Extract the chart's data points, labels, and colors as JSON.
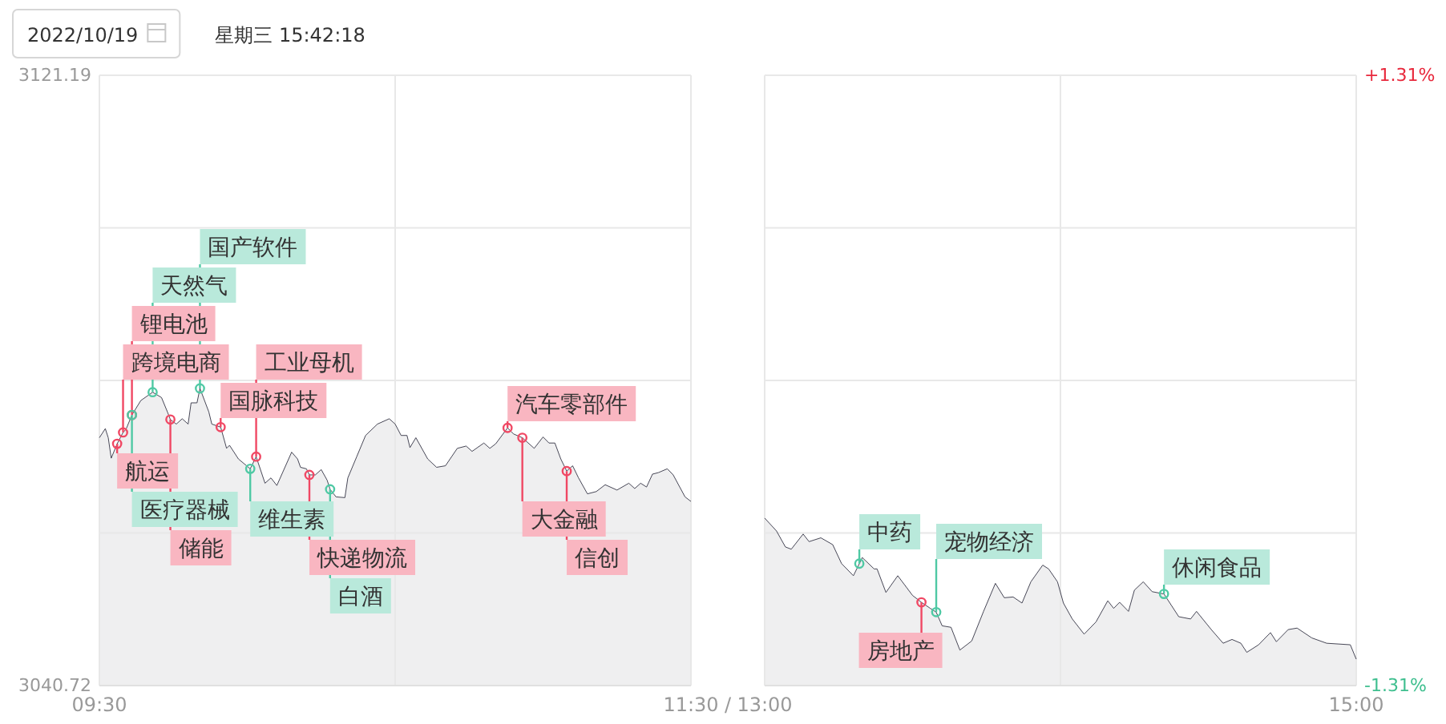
{
  "chart_data": [
    {
      "type": "area",
      "title": "2022/10/19",
      "subtitle": "星期三 15:42:18",
      "color": "#333344",
      "x": [
        9.5,
        9.52,
        9.53,
        9.54,
        9.56,
        9.58,
        9.59,
        9.61,
        9.64,
        9.68,
        9.71,
        9.73,
        9.74,
        9.76,
        9.78,
        9.8,
        9.81,
        9.83,
        9.84,
        9.87,
        9.88,
        9.91,
        9.93,
        9.94,
        9.97,
        10.01,
        10.03,
        10.06,
        10.08,
        10.1,
        10.15,
        10.17,
        10.18,
        10.2,
        10.21,
        10.23,
        10.25,
        10.27,
        10.28,
        10.3,
        10.33,
        10.34,
        10.37,
        10.4,
        10.44,
        10.48,
        10.5,
        10.52,
        10.54,
        10.55,
        10.57,
        10.61,
        10.64,
        10.67,
        10.71,
        10.74,
        10.76,
        10.8,
        10.82,
        10.84,
        10.88,
        10.9,
        10.93,
        10.97,
        11.0,
        11.02,
        11.04,
        11.06,
        11.08,
        11.1,
        11.12,
        11.15,
        11.18,
        11.21,
        11.25,
        11.29,
        11.31,
        11.33,
        11.35,
        11.37,
        11.39,
        11.42,
        11.44,
        11.48,
        11.5
      ],
      "values": [
        3073.4,
        3074.6,
        3073.4,
        3070.7,
        3072.6,
        3074.1,
        3074.5,
        3076.4,
        3078.3,
        3079.4,
        3078.7,
        3076.8,
        3075.8,
        3075.2,
        3075.9,
        3075.2,
        3078.0,
        3078.0,
        3079.9,
        3076.8,
        3075.2,
        3074.8,
        3072.0,
        3072.4,
        3070.6,
        3069.3,
        3070.9,
        3067.4,
        3068.1,
        3067.1,
        3071.5,
        3070.6,
        3069.5,
        3069.3,
        3068.5,
        3068.5,
        3069.2,
        3067.8,
        3066.6,
        3065.6,
        3065.5,
        3068.1,
        3070.9,
        3073.7,
        3075.2,
        3075.9,
        3075.2,
        3073.7,
        3073.7,
        3072.1,
        3073.4,
        3070.6,
        3069.5,
        3069.7,
        3072.0,
        3072.3,
        3071.6,
        3072.7,
        3072.0,
        3072.6,
        3074.7,
        3073.9,
        3073.4,
        3072.0,
        3073.5,
        3072.7,
        3072.7,
        3070.6,
        3069.0,
        3069.7,
        3068.1,
        3066.0,
        3066.3,
        3067.2,
        3066.5,
        3067.4,
        3066.7,
        3067.4,
        3066.9,
        3068.6,
        3068.8,
        3069.3,
        3068.5,
        3065.6,
        3065.0
      ],
      "xlim": [
        9.5,
        11.5
      ],
      "xticks": [
        {
          "value": 9.5,
          "label": "09:30"
        },
        {
          "value": 10.5,
          "label": null
        },
        {
          "value": 11.5,
          "label": "11:30"
        }
      ],
      "annotations": [
        "/"
      ],
      "ylim": [
        3040.72,
        3121.19
      ],
      "yticks": [
        {
          "value": 3040.72,
          "label": "3040.72"
        },
        {
          "value": 3060.84,
          "label": null
        },
        {
          "value": 3080.955,
          "label": null
        },
        {
          "value": 3101.07,
          "label": null
        },
        {
          "value": 3121.19,
          "label": "3121.19"
        }
      ],
      "grid": true,
      "ref_lines": [
        {
          "axis": "x",
          "value": 9.56,
          "label": "航运",
          "color": "#f04864"
        },
        {
          "axis": "x",
          "value": 9.58,
          "label": "跨境电商",
          "color": "#f04864"
        },
        {
          "axis": "x",
          "value": 9.61,
          "label": "锂电池",
          "color": "#f04864"
        },
        {
          "axis": "x",
          "value": 9.61,
          "label": "医疗器械",
          "color": "#4fc9a4"
        },
        {
          "axis": "x",
          "value": 9.68,
          "label": "天然气",
          "color": "#4fc9a4"
        },
        {
          "axis": "x",
          "value": 9.74,
          "label": "储能",
          "color": "#f04864"
        },
        {
          "axis": "x",
          "value": 9.84,
          "label": "国产软件",
          "color": "#4fc9a4"
        },
        {
          "axis": "x",
          "value": 9.91,
          "label": "国脉科技",
          "color": "#f04864"
        },
        {
          "axis": "x",
          "value": 10.01,
          "label": "维生素",
          "color": "#4fc9a4"
        },
        {
          "axis": "x",
          "value": 10.03,
          "label": "工业母机",
          "color": "#f04864"
        },
        {
          "axis": "x",
          "value": 10.21,
          "label": "快递物流",
          "color": "#f04864"
        },
        {
          "axis": "x",
          "value": 10.28,
          "label": "白酒",
          "color": "#4fc9a4"
        },
        {
          "axis": "x",
          "value": 10.88,
          "label": "汽车零部件",
          "color": "#f04864"
        },
        {
          "axis": "x",
          "value": 10.93,
          "label": "大金融",
          "color": "#f04864"
        },
        {
          "axis": "x",
          "value": 11.08,
          "label": "信创",
          "color": "#f04864"
        }
      ]
    },
    {
      "type": "area",
      "color": "#333344",
      "x": [
        13.0,
        13.04,
        13.07,
        13.09,
        13.13,
        13.15,
        13.19,
        13.23,
        13.26,
        13.3,
        13.32,
        13.33,
        13.37,
        13.38,
        13.41,
        13.45,
        13.5,
        13.53,
        13.56,
        13.58,
        13.6,
        13.63,
        13.66,
        13.7,
        13.74,
        13.78,
        13.81,
        13.84,
        13.87,
        13.9,
        13.94,
        13.96,
        13.99,
        14.01,
        14.04,
        14.08,
        14.12,
        14.16,
        14.18,
        14.2,
        14.23,
        14.25,
        14.28,
        14.31,
        14.35,
        14.4,
        14.44,
        14.46,
        14.51,
        14.55,
        14.58,
        14.61,
        14.63,
        14.67,
        14.71,
        14.73,
        14.77,
        14.8,
        14.85,
        14.9,
        14.98,
        15.0
      ],
      "values": [
        3062.8,
        3061.1,
        3059.0,
        3058.7,
        3060.7,
        3059.7,
        3060.2,
        3059.3,
        3056.8,
        3055.2,
        3056.8,
        3057.6,
        3056.1,
        3056.1,
        3053.0,
        3055.2,
        3052.6,
        3051.7,
        3050.9,
        3050.4,
        3048.6,
        3048.4,
        3045.4,
        3046.6,
        3050.5,
        3054.2,
        3052.3,
        3052.4,
        3051.6,
        3054.4,
        3056.6,
        3056.1,
        3054.4,
        3051.6,
        3049.5,
        3047.5,
        3049.1,
        3051.9,
        3050.9,
        3051.7,
        3050.5,
        3053.3,
        3054.4,
        3053.1,
        3052.8,
        3049.8,
        3049.5,
        3050.5,
        3048.1,
        3046.3,
        3046.8,
        3046.3,
        3045.1,
        3046.1,
        3047.7,
        3046.5,
        3048.1,
        3048.3,
        3047.0,
        3046.3,
        3046.1,
        3044.2
      ],
      "xlim": [
        13,
        15
      ],
      "xticks": [
        {
          "value": 13,
          "label": "13:00"
        },
        {
          "value": 14,
          "label": null
        },
        {
          "value": 15,
          "label": "15:00"
        }
      ],
      "ylim": [
        3040.72,
        3121.19
      ],
      "yticks": [
        {
          "value": 3040.72,
          "label": null
        },
        {
          "value": 3060.84,
          "label": null
        },
        {
          "value": 3080.955,
          "label": null
        },
        {
          "value": 3101.07,
          "label": null
        },
        {
          "value": 3121.19,
          "label": null
        }
      ],
      "tick_labels": "x",
      "y2lim": [
        -1.31,
        1.31
      ],
      "y2ticks": [
        {
          "value": -1.31,
          "label": "-1.31%"
        },
        {
          "value": 1.31,
          "label": "+1.31%"
        }
      ],
      "grid": true,
      "ref_lines": [
        {
          "axis": "x",
          "value": 13.32,
          "label": "中药",
          "color": "#4fc9a4"
        },
        {
          "axis": "x",
          "value": 13.53,
          "label": "房地产",
          "color": "#f04864"
        },
        {
          "axis": "x",
          "value": 13.58,
          "label": "宠物经济",
          "color": "#4fc9a4"
        },
        {
          "axis": "x",
          "value": 14.35,
          "label": "休闲食品",
          "color": "#4fc9a4"
        }
      ]
    }
  ]
}
